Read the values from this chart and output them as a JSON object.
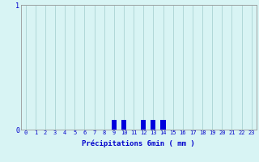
{
  "xlabel": "Précipitations 6min ( mm )",
  "hours": [
    0,
    1,
    2,
    3,
    4,
    5,
    6,
    7,
    8,
    9,
    10,
    11,
    12,
    13,
    14,
    15,
    16,
    17,
    18,
    19,
    20,
    21,
    22,
    23
  ],
  "values": [
    0,
    0,
    0,
    0,
    0,
    0,
    0,
    0,
    0,
    0.08,
    0.08,
    0,
    0.08,
    0.08,
    0.08,
    0,
    0,
    0,
    0,
    0,
    0,
    0,
    0,
    0
  ],
  "bar_color": "#0000dd",
  "bg_color": "#d8f4f4",
  "grid_color": "#b0d8d8",
  "text_color": "#0000cc",
  "ylim": [
    0,
    1.0
  ],
  "yticks": [
    0,
    1
  ],
  "bar_width": 0.5
}
